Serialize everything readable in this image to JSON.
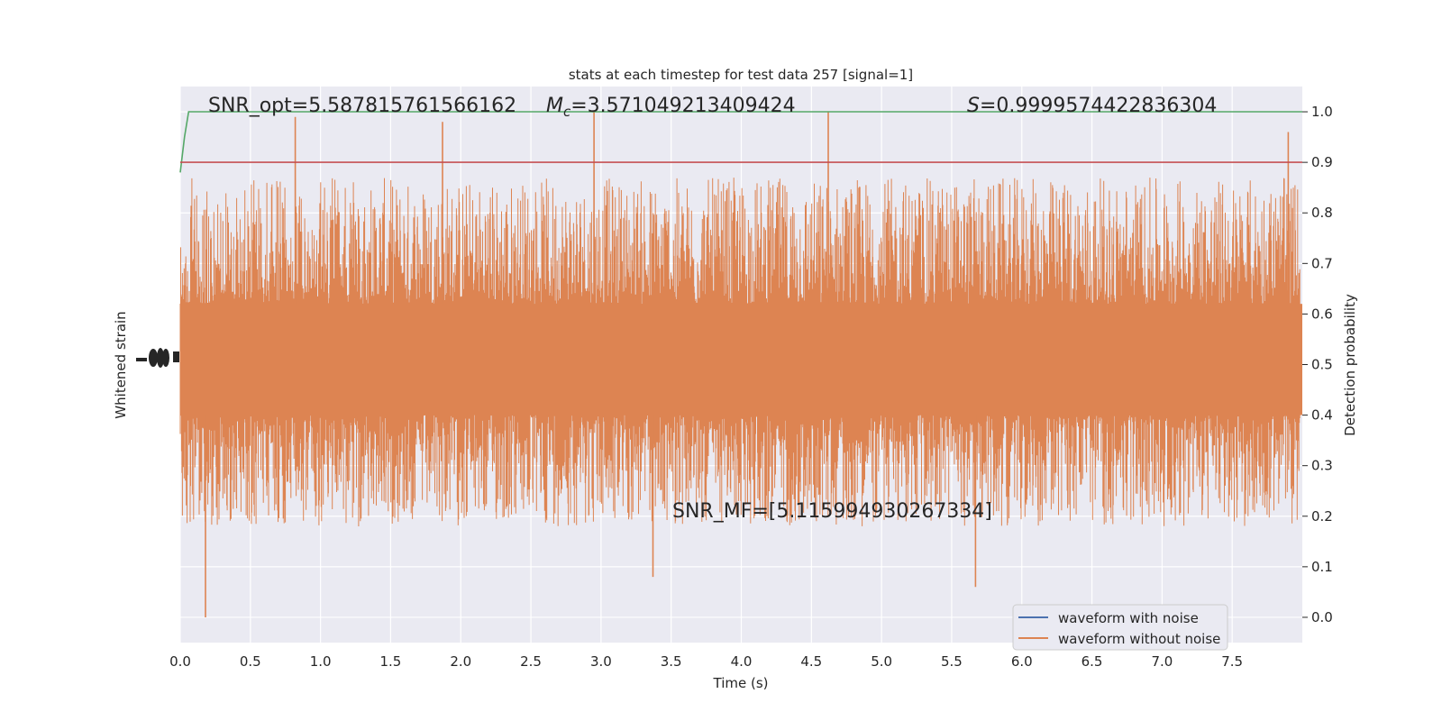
{
  "chart_data": {
    "type": "line",
    "title": "stats at each timestep for test data 257 [signal=1]",
    "xlabel": "Time (s)",
    "ylabel_left": "Whitened strain",
    "ylabel_right": "Detection probability",
    "xlim": [
      0.0,
      8.0
    ],
    "ylim_right": [
      -0.05,
      1.05
    ],
    "x_ticks": [
      "0.0",
      "0.5",
      "1.0",
      "1.5",
      "2.0",
      "2.5",
      "3.0",
      "3.5",
      "4.0",
      "4.5",
      "5.0",
      "5.5",
      "6.0",
      "6.5",
      "7.0",
      "7.5"
    ],
    "y_right_ticks": [
      "0.0",
      "0.1",
      "0.2",
      "0.3",
      "0.4",
      "0.5",
      "0.6",
      "0.7",
      "0.8",
      "0.9",
      "1.0"
    ],
    "grid": true,
    "legend_position": "lower right",
    "series": [
      {
        "name": "waveform with noise",
        "color": "#4c72b0"
      },
      {
        "name": "waveform without noise",
        "color": "#dd8452",
        "description_values": {
          "band_low": 0.4,
          "band_high": 0.62,
          "min": 0.0,
          "max": 1.0
        }
      },
      {
        "color": "#55a868",
        "x": [
          0.0,
          0.03,
          0.06,
          8.0
        ],
        "values": [
          0.88,
          0.95,
          1.0,
          1.0
        ]
      },
      {
        "color": "#c44e52",
        "x": [
          0.0,
          8.0
        ],
        "values": [
          0.9,
          0.9
        ]
      }
    ],
    "annotations": {
      "snr_opt": "SNR_opt=5.587815761566162",
      "mc_symbol": "M",
      "mc_sub": "c",
      "mc_value": "=3.571049213409424",
      "s_symbol": "S",
      "s_value": "=0.9999574422836304",
      "snr_mf": "SNR_MF=[5.115994930267334]"
    },
    "spike_peaks": [
      {
        "t": 0.18,
        "v": 0.0
      },
      {
        "t": 0.82,
        "v": 0.99
      },
      {
        "t": 1.87,
        "v": 0.98
      },
      {
        "t": 2.95,
        "v": 1.0
      },
      {
        "t": 3.37,
        "v": 0.08
      },
      {
        "t": 4.62,
        "v": 1.0
      },
      {
        "t": 5.67,
        "v": 0.06
      },
      {
        "t": 7.9,
        "v": 0.96
      }
    ]
  }
}
